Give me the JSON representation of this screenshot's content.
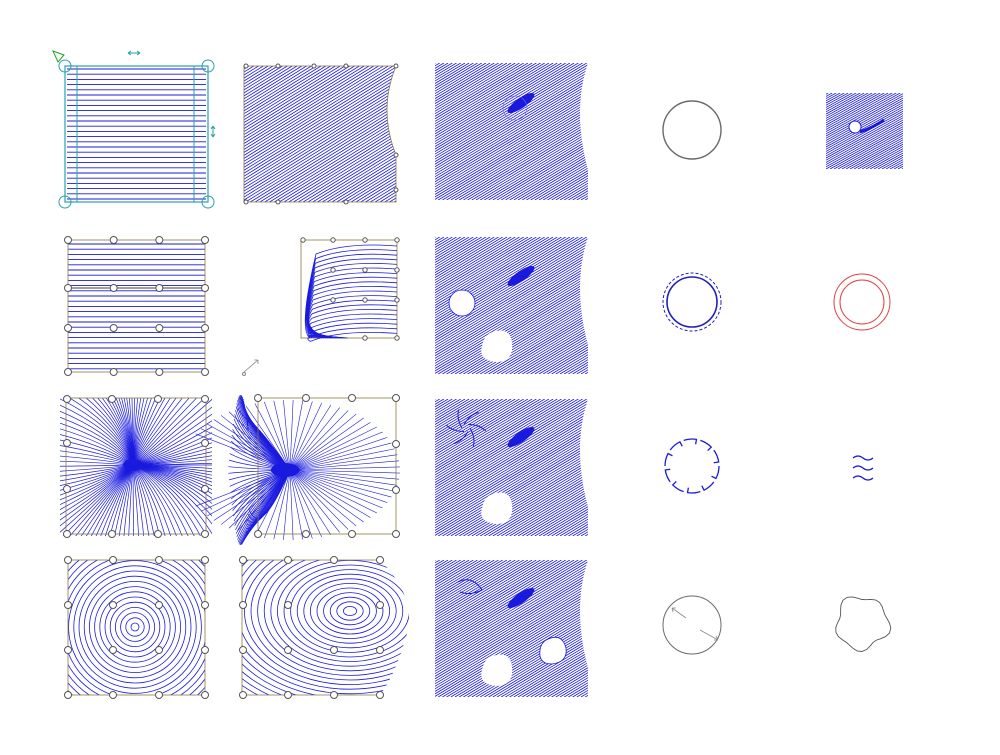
{
  "colors": {
    "background": "#ffffff",
    "fill_line": "#1a1adf",
    "frame": "#8a7a3a",
    "control_point": "#555555",
    "selection": "#2aa0b0",
    "handle_arrow": "#20a0a0",
    "origin_marker": "#20a020",
    "circle_plain": "#6a6a6a",
    "circle_red": "#e04040",
    "circle_dashed": "#2020c0"
  },
  "grid": {
    "rows": 4,
    "columns": 5
  },
  "panels": [
    {
      "name": "panel-r1-c1",
      "icon": "parallel-fill-selected-icon"
    },
    {
      "name": "panel-r1-c2",
      "icon": "diagonal-fill-warped-icon"
    },
    {
      "name": "panel-r1-c3",
      "icon": "diagonal-fill-hole-icon"
    },
    {
      "name": "panel-r1-c4",
      "icon": "plain-circle-icon"
    },
    {
      "name": "panel-r1-c5",
      "icon": "small-fill-keyhole-icon"
    },
    {
      "name": "panel-r2-c1",
      "icon": "parallel-fill-points-icon"
    },
    {
      "name": "panel-r2-c2",
      "icon": "pulled-fill-corner-icon"
    },
    {
      "name": "panel-r2-c3",
      "icon": "diagonal-fill-two-holes-icon"
    },
    {
      "name": "panel-r2-c4",
      "icon": "dashed-double-circle-icon"
    },
    {
      "name": "panel-r2-c5",
      "icon": "red-double-circle-icon"
    },
    {
      "name": "panel-r3-c1",
      "icon": "radial-burst-fill-icon"
    },
    {
      "name": "panel-r3-c2",
      "icon": "radial-burst-skewed-icon"
    },
    {
      "name": "panel-r3-c3",
      "icon": "diagonal-fill-swirl-icon"
    },
    {
      "name": "panel-r3-c4",
      "icon": "pinwheel-circle-icon"
    },
    {
      "name": "panel-r3-c5",
      "icon": "wavy-lines-icon"
    },
    {
      "name": "panel-r4-c1",
      "icon": "concentric-fill-icon"
    },
    {
      "name": "panel-r4-c2",
      "icon": "concentric-fill-bulged-icon"
    },
    {
      "name": "panel-r4-c3",
      "icon": "diagonal-fill-three-holes-icon"
    },
    {
      "name": "panel-r4-c4",
      "icon": "circle-with-arrows-icon"
    },
    {
      "name": "panel-r4-c5",
      "icon": "irregular-blob-outline-icon"
    }
  ]
}
